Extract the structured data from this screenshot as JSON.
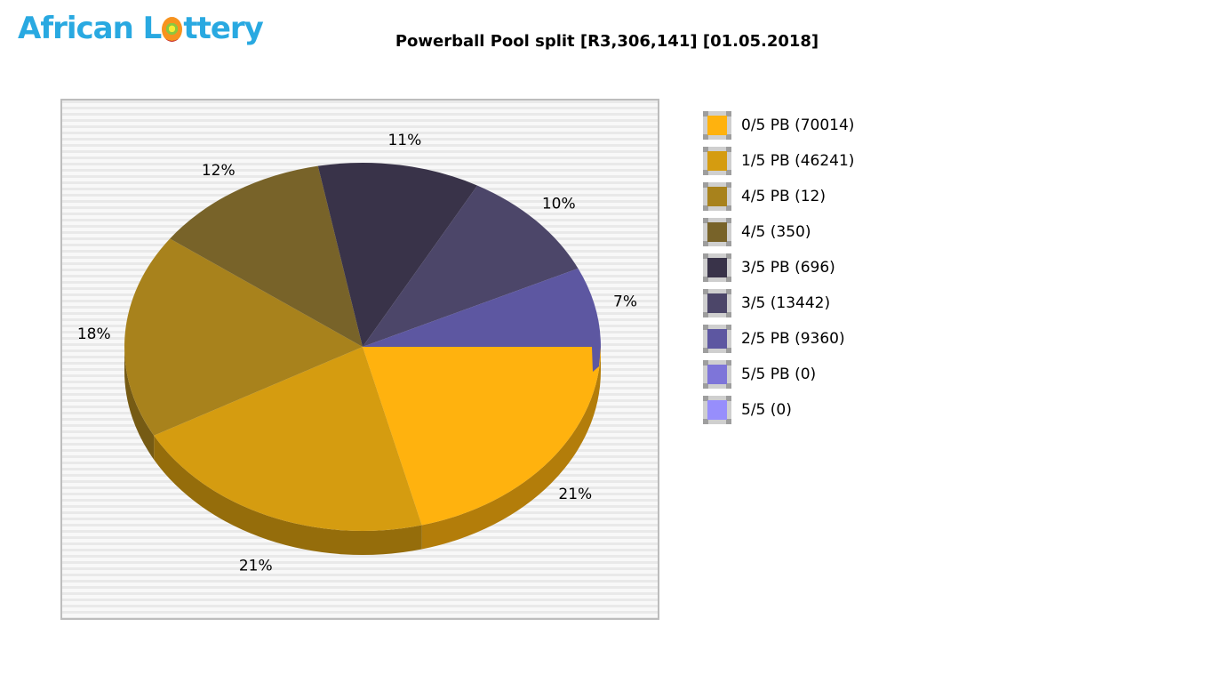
{
  "logo": {
    "prefix": "African L",
    "suffix": "ttery",
    "color": "#29a9e1"
  },
  "header": {
    "title": "Powerball Pool split [R3,306,141] [01.05.2018]"
  },
  "chart_data": {
    "type": "pie",
    "style": "3d",
    "title": "Powerball Pool split [R3,306,141] [01.05.2018]",
    "pool_total": "R3,306,141",
    "draw_date": "01.05.2018",
    "start_angle_deg": 0,
    "direction": "clockwise",
    "legend_position": "right",
    "slice_label_format": "percent",
    "slices": [
      {
        "label": "0/5 PB (70014)",
        "category": "0/5 PB",
        "winners": 70014,
        "percent": 21,
        "color": "#ffb20e"
      },
      {
        "label": "1/5 PB (46241)",
        "category": "1/5 PB",
        "winners": 46241,
        "percent": 21,
        "color": "#d59c10"
      },
      {
        "label": "4/5 PB (12)",
        "category": "4/5 PB",
        "winners": 12,
        "percent": 18,
        "color": "#a8821c"
      },
      {
        "label": "4/5 (350)",
        "category": "4/5",
        "winners": 350,
        "percent": 12,
        "color": "#786329"
      },
      {
        "label": "3/5 PB (696)",
        "category": "3/5 PB",
        "winners": 696,
        "percent": 11,
        "color": "#393349"
      },
      {
        "label": "3/5 (13442)",
        "category": "3/5",
        "winners": 13442,
        "percent": 10,
        "color": "#4c4669"
      },
      {
        "label": "2/5 PB (9360)",
        "category": "2/5 PB",
        "winners": 9360,
        "percent": 7,
        "color": "#5d57a1"
      },
      {
        "label": "5/5 PB (0)",
        "category": "5/5 PB",
        "winners": 0,
        "percent": 0,
        "color": "#7e75d9"
      },
      {
        "label": "5/5 (0)",
        "category": "5/5",
        "winners": 0,
        "percent": 0,
        "color": "#978efc"
      }
    ]
  }
}
